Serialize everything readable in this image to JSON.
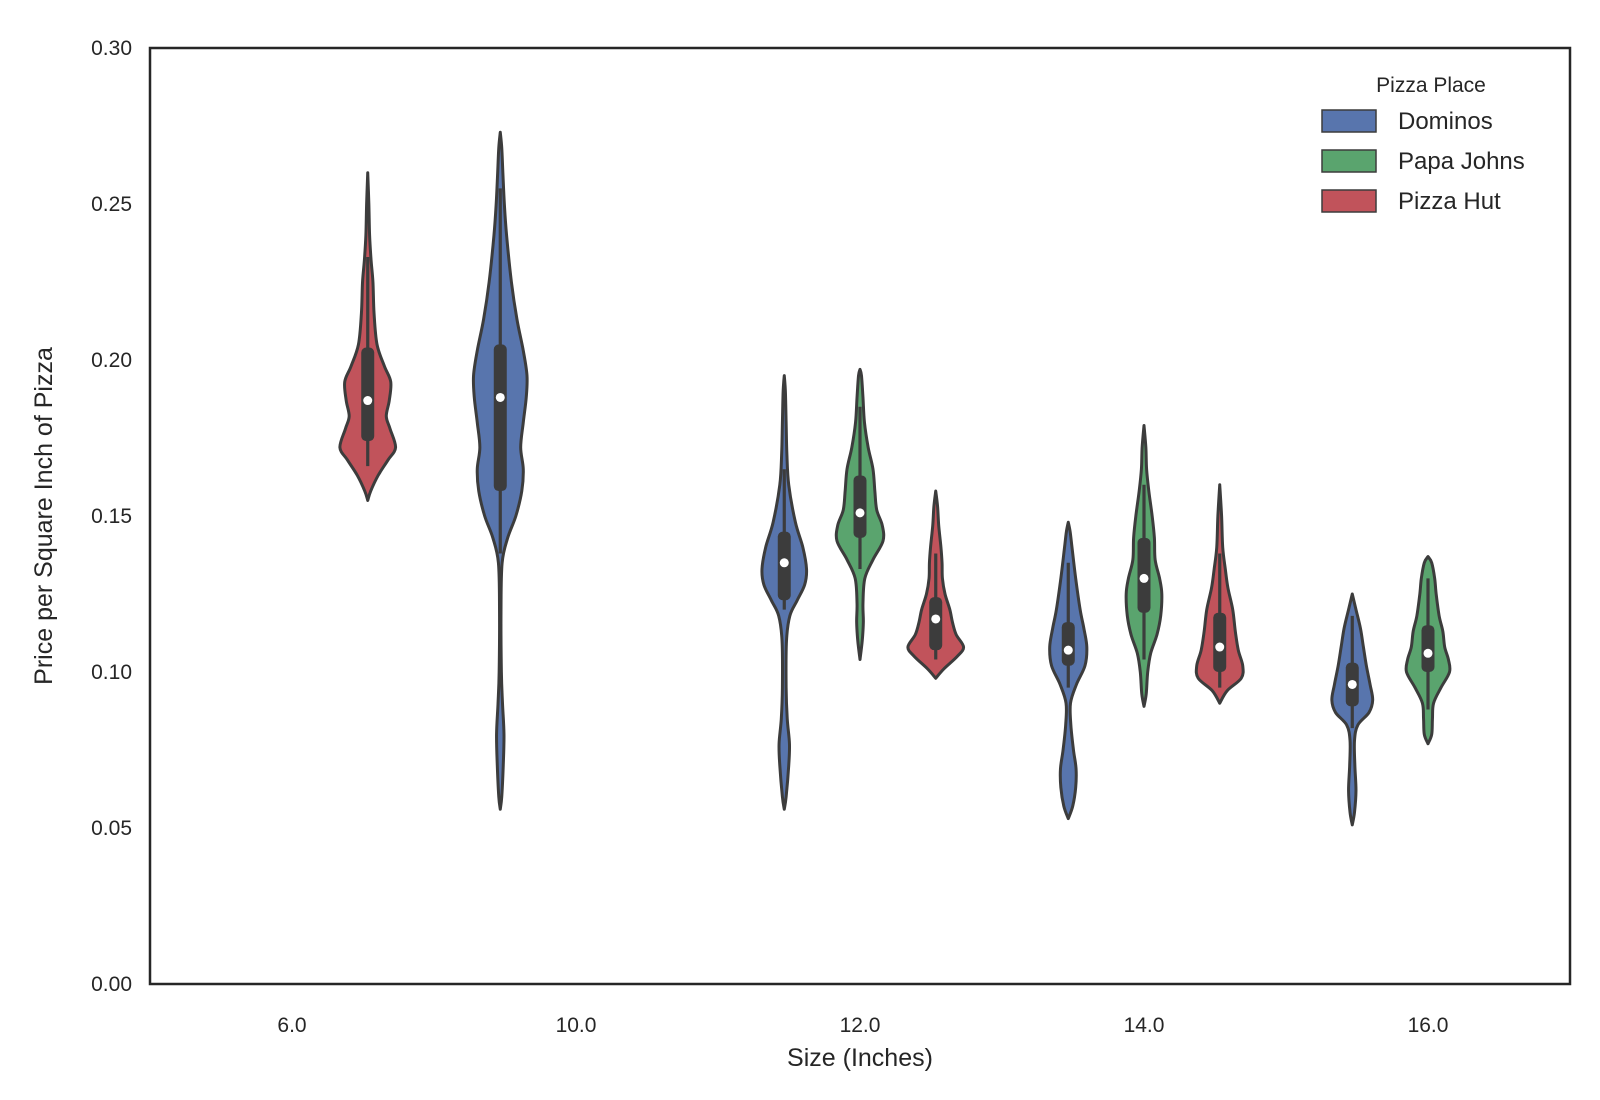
{
  "chart_data": {
    "type": "violin",
    "xlabel": "Size (Inches)",
    "ylabel": "Price per Square Inch of Pizza",
    "ylim": [
      0.0,
      0.3
    ],
    "yticks": [
      "0.00",
      "0.05",
      "0.10",
      "0.15",
      "0.20",
      "0.25",
      "0.30"
    ],
    "categories": [
      "6.0",
      "10.0",
      "12.0",
      "14.0",
      "16.0"
    ],
    "grid": false,
    "legend": {
      "title": "Pizza Place",
      "placement": "top-right",
      "entries": [
        "Dominos",
        "Papa Johns",
        "Pizza Hut"
      ]
    },
    "colors": {
      "Dominos": "#5875ad",
      "Papa Johns": "#5aa46e",
      "Pizza Hut": "#c1535b",
      "outline": "#3c3c3c",
      "median": "#ffffff"
    },
    "violins": [
      {
        "category": "6.0",
        "series": "Pizza Hut",
        "min": 0.155,
        "max": 0.26,
        "q1": 0.174,
        "median": 0.187,
        "q3": 0.204,
        "whisker_low": 0.166,
        "whisker_high": 0.233,
        "profile": [
          [
            0.155,
            0
          ],
          [
            0.158,
            0.08
          ],
          [
            0.163,
            0.28
          ],
          [
            0.168,
            0.55
          ],
          [
            0.172,
            0.75
          ],
          [
            0.178,
            0.6
          ],
          [
            0.182,
            0.5
          ],
          [
            0.187,
            0.58
          ],
          [
            0.193,
            0.62
          ],
          [
            0.198,
            0.45
          ],
          [
            0.205,
            0.25
          ],
          [
            0.215,
            0.17
          ],
          [
            0.225,
            0.14
          ],
          [
            0.232,
            0.09
          ],
          [
            0.24,
            0.05
          ],
          [
            0.25,
            0.03
          ],
          [
            0.26,
            0
          ]
        ]
      },
      {
        "category": "10.0",
        "series": "Dominos",
        "min": 0.056,
        "max": 0.273,
        "q1": 0.158,
        "median": 0.188,
        "q3": 0.205,
        "whisker_low": 0.138,
        "whisker_high": 0.255,
        "profile": [
          [
            0.056,
            0
          ],
          [
            0.06,
            0.04
          ],
          [
            0.07,
            0.08
          ],
          [
            0.08,
            0.1
          ],
          [
            0.09,
            0.06
          ],
          [
            0.1,
            0.03
          ],
          [
            0.12,
            0.02
          ],
          [
            0.135,
            0.05
          ],
          [
            0.143,
            0.2
          ],
          [
            0.15,
            0.42
          ],
          [
            0.158,
            0.58
          ],
          [
            0.165,
            0.62
          ],
          [
            0.172,
            0.55
          ],
          [
            0.18,
            0.62
          ],
          [
            0.188,
            0.7
          ],
          [
            0.195,
            0.72
          ],
          [
            0.203,
            0.62
          ],
          [
            0.213,
            0.45
          ],
          [
            0.225,
            0.3
          ],
          [
            0.24,
            0.17
          ],
          [
            0.25,
            0.11
          ],
          [
            0.26,
            0.07
          ],
          [
            0.268,
            0.04
          ],
          [
            0.273,
            0
          ]
        ]
      },
      {
        "category": "12.0",
        "series": "Dominos",
        "min": 0.056,
        "max": 0.195,
        "q1": 0.123,
        "median": 0.135,
        "q3": 0.145,
        "whisker_low": 0.12,
        "whisker_high": 0.165,
        "profile": [
          [
            0.056,
            0
          ],
          [
            0.06,
            0.05
          ],
          [
            0.07,
            0.12
          ],
          [
            0.077,
            0.14
          ],
          [
            0.085,
            0.08
          ],
          [
            0.095,
            0.05
          ],
          [
            0.11,
            0.06
          ],
          [
            0.118,
            0.15
          ],
          [
            0.123,
            0.35
          ],
          [
            0.128,
            0.55
          ],
          [
            0.133,
            0.6
          ],
          [
            0.14,
            0.5
          ],
          [
            0.148,
            0.3
          ],
          [
            0.16,
            0.12
          ],
          [
            0.17,
            0.07
          ],
          [
            0.18,
            0.05
          ],
          [
            0.19,
            0.03
          ],
          [
            0.195,
            0
          ]
        ]
      },
      {
        "category": "12.0",
        "series": "Papa Johns",
        "min": 0.104,
        "max": 0.197,
        "q1": 0.143,
        "median": 0.151,
        "q3": 0.163,
        "whisker_low": 0.133,
        "whisker_high": 0.185,
        "profile": [
          [
            0.104,
            0
          ],
          [
            0.11,
            0.06
          ],
          [
            0.116,
            0.09
          ],
          [
            0.122,
            0.08
          ],
          [
            0.13,
            0.13
          ],
          [
            0.136,
            0.35
          ],
          [
            0.142,
            0.62
          ],
          [
            0.147,
            0.6
          ],
          [
            0.152,
            0.45
          ],
          [
            0.158,
            0.4
          ],
          [
            0.165,
            0.35
          ],
          [
            0.172,
            0.22
          ],
          [
            0.18,
            0.12
          ],
          [
            0.188,
            0.08
          ],
          [
            0.195,
            0.04
          ],
          [
            0.197,
            0
          ]
        ]
      },
      {
        "category": "12.0",
        "series": "Pizza Hut",
        "min": 0.098,
        "max": 0.158,
        "q1": 0.107,
        "median": 0.117,
        "q3": 0.124,
        "whisker_low": 0.104,
        "whisker_high": 0.138,
        "profile": [
          [
            0.098,
            0
          ],
          [
            0.101,
            0.22
          ],
          [
            0.105,
            0.58
          ],
          [
            0.108,
            0.75
          ],
          [
            0.112,
            0.55
          ],
          [
            0.116,
            0.45
          ],
          [
            0.12,
            0.38
          ],
          [
            0.125,
            0.25
          ],
          [
            0.13,
            0.18
          ],
          [
            0.135,
            0.17
          ],
          [
            0.14,
            0.14
          ],
          [
            0.147,
            0.08
          ],
          [
            0.153,
            0.05
          ],
          [
            0.158,
            0
          ]
        ]
      },
      {
        "category": "14.0",
        "series": "Dominos",
        "min": 0.053,
        "max": 0.148,
        "q1": 0.102,
        "median": 0.107,
        "q3": 0.116,
        "whisker_low": 0.095,
        "whisker_high": 0.135,
        "profile": [
          [
            0.053,
            0
          ],
          [
            0.057,
            0.12
          ],
          [
            0.063,
            0.2
          ],
          [
            0.069,
            0.21
          ],
          [
            0.075,
            0.14
          ],
          [
            0.083,
            0.07
          ],
          [
            0.09,
            0.06
          ],
          [
            0.096,
            0.22
          ],
          [
            0.102,
            0.45
          ],
          [
            0.108,
            0.5
          ],
          [
            0.114,
            0.42
          ],
          [
            0.12,
            0.32
          ],
          [
            0.13,
            0.2
          ],
          [
            0.14,
            0.1
          ],
          [
            0.145,
            0.05
          ],
          [
            0.148,
            0
          ]
        ]
      },
      {
        "category": "14.0",
        "series": "Papa Johns",
        "min": 0.089,
        "max": 0.179,
        "q1": 0.119,
        "median": 0.13,
        "q3": 0.143,
        "whisker_low": 0.104,
        "whisker_high": 0.16,
        "profile": [
          [
            0.089,
            0
          ],
          [
            0.093,
            0.06
          ],
          [
            0.1,
            0.1
          ],
          [
            0.106,
            0.18
          ],
          [
            0.112,
            0.35
          ],
          [
            0.118,
            0.45
          ],
          [
            0.125,
            0.48
          ],
          [
            0.13,
            0.42
          ],
          [
            0.136,
            0.3
          ],
          [
            0.143,
            0.28
          ],
          [
            0.15,
            0.22
          ],
          [
            0.158,
            0.13
          ],
          [
            0.165,
            0.07
          ],
          [
            0.172,
            0.05
          ],
          [
            0.179,
            0
          ]
        ]
      },
      {
        "category": "14.0",
        "series": "Pizza Hut",
        "min": 0.09,
        "max": 0.16,
        "q1": 0.1,
        "median": 0.108,
        "q3": 0.119,
        "whisker_low": 0.095,
        "whisker_high": 0.138,
        "profile": [
          [
            0.09,
            0
          ],
          [
            0.094,
            0.2
          ],
          [
            0.098,
            0.58
          ],
          [
            0.102,
            0.62
          ],
          [
            0.107,
            0.5
          ],
          [
            0.113,
            0.42
          ],
          [
            0.12,
            0.35
          ],
          [
            0.127,
            0.22
          ],
          [
            0.133,
            0.15
          ],
          [
            0.14,
            0.08
          ],
          [
            0.15,
            0.05
          ],
          [
            0.16,
            0
          ]
        ]
      },
      {
        "category": "16.0",
        "series": "Dominos",
        "min": 0.051,
        "max": 0.125,
        "q1": 0.089,
        "median": 0.096,
        "q3": 0.103,
        "whisker_low": 0.082,
        "whisker_high": 0.118,
        "profile": [
          [
            0.051,
            0
          ],
          [
            0.055,
            0.06
          ],
          [
            0.062,
            0.1
          ],
          [
            0.07,
            0.07
          ],
          [
            0.078,
            0.06
          ],
          [
            0.083,
            0.15
          ],
          [
            0.087,
            0.45
          ],
          [
            0.091,
            0.55
          ],
          [
            0.096,
            0.48
          ],
          [
            0.102,
            0.38
          ],
          [
            0.108,
            0.3
          ],
          [
            0.114,
            0.22
          ],
          [
            0.12,
            0.1
          ],
          [
            0.125,
            0
          ]
        ]
      },
      {
        "category": "16.0",
        "series": "Papa Johns",
        "min": 0.077,
        "max": 0.137,
        "q1": 0.1,
        "median": 0.106,
        "q3": 0.115,
        "whisker_low": 0.088,
        "whisker_high": 0.13,
        "profile": [
          [
            0.077,
            0
          ],
          [
            0.08,
            0.1
          ],
          [
            0.085,
            0.12
          ],
          [
            0.09,
            0.15
          ],
          [
            0.095,
            0.35
          ],
          [
            0.1,
            0.58
          ],
          [
            0.104,
            0.55
          ],
          [
            0.108,
            0.45
          ],
          [
            0.113,
            0.4
          ],
          [
            0.118,
            0.3
          ],
          [
            0.125,
            0.22
          ],
          [
            0.13,
            0.18
          ],
          [
            0.135,
            0.1
          ],
          [
            0.137,
            0
          ]
        ]
      }
    ]
  }
}
